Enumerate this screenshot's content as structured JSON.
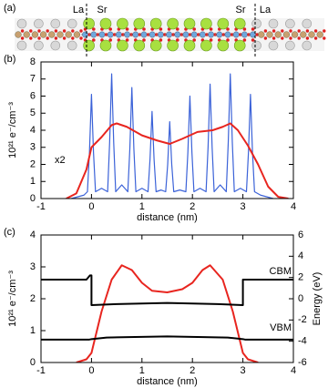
{
  "structure_panel": {
    "label": "(a)",
    "labels": [
      "La",
      "Sr",
      "Sr",
      "La"
    ]
  },
  "chart_data": [
    {
      "type": "line",
      "panel_label": "(b)",
      "xlabel": "distance (nm)",
      "ylabel": "10²¹ e⁻/cm⁻³",
      "xlim": [
        -1,
        4
      ],
      "xticks": [
        -1,
        0,
        1,
        2,
        3,
        4
      ],
      "ylim": [
        0,
        8
      ],
      "yticks": [
        0,
        1,
        2,
        3,
        4,
        5,
        6,
        7,
        8
      ],
      "annotations": [
        {
          "text": "x2",
          "color": "#e8251f"
        }
      ],
      "series": [
        {
          "color": "#3b62d8",
          "width": 1.2,
          "x": [
            -0.4,
            -0.15,
            -0.08,
            -0.04,
            0,
            0.04,
            0.08,
            0.2,
            0.32,
            0.36,
            0.4,
            0.44,
            0.48,
            0.6,
            0.72,
            0.76,
            0.8,
            0.84,
            0.88,
            1.0,
            1.12,
            1.16,
            1.2,
            1.24,
            1.28,
            1.38,
            1.47,
            1.51,
            1.55,
            1.59,
            1.63,
            1.75,
            1.87,
            1.91,
            1.95,
            1.99,
            2.03,
            2.15,
            2.27,
            2.31,
            2.35,
            2.39,
            2.43,
            2.55,
            2.67,
            2.71,
            2.75,
            2.79,
            2.83,
            2.95,
            3.07,
            3.11,
            3.15,
            3.19,
            3.23,
            3.35,
            3.6
          ],
          "values": [
            0,
            0.2,
            0.4,
            2.7,
            6.1,
            2.7,
            0.4,
            0.6,
            0.4,
            3.3,
            7.3,
            3.3,
            0.4,
            0.8,
            0.4,
            2.9,
            6.5,
            2.9,
            0.4,
            0.6,
            0.4,
            2.3,
            5.1,
            2.3,
            0.4,
            0.5,
            0.4,
            2.0,
            4.5,
            2.0,
            0.4,
            0.5,
            0.4,
            2.7,
            6.0,
            2.7,
            0.4,
            0.6,
            0.4,
            3.0,
            6.7,
            3.0,
            0.4,
            0.8,
            0.4,
            3.3,
            7.3,
            3.3,
            0.4,
            0.6,
            0.4,
            2.7,
            6.1,
            2.7,
            0.4,
            0.2,
            0
          ]
        },
        {
          "color": "#e8251f",
          "width": 2,
          "x": [
            -0.5,
            -0.3,
            -0.1,
            0,
            0.2,
            0.4,
            0.5,
            0.7,
            1.0,
            1.3,
            1.55,
            1.8,
            2.1,
            2.4,
            2.6,
            2.75,
            2.9,
            3.1,
            3.3,
            3.5,
            3.7,
            3.9
          ],
          "values": [
            0,
            0.3,
            1.7,
            3.0,
            3.6,
            4.3,
            4.4,
            4.2,
            3.7,
            3.4,
            3.2,
            3.5,
            3.9,
            4.0,
            4.2,
            4.4,
            4.0,
            3.1,
            2.0,
            0.7,
            0.1,
            0
          ]
        }
      ]
    },
    {
      "type": "line",
      "panel_label": "(c)",
      "xlabel": "distance (nm)",
      "ylabel": "10²¹ e⁻/cm⁻³",
      "y2label": "Energy (eV)",
      "xlim": [
        -1,
        4
      ],
      "xticks": [
        -1,
        0,
        1,
        2,
        3,
        4
      ],
      "ylim": [
        0,
        4
      ],
      "yticks": [
        0,
        1,
        2,
        3,
        4
      ],
      "y2lim": [
        -6,
        6
      ],
      "y2ticks": [
        -6,
        -4,
        -2,
        0,
        2,
        4,
        6
      ],
      "series": [
        {
          "color": "#e8251f",
          "width": 2,
          "x": [
            -0.3,
            -0.1,
            0,
            0.2,
            0.4,
            0.6,
            0.8,
            1.0,
            1.2,
            1.5,
            1.8,
            2.0,
            2.2,
            2.35,
            2.6,
            2.8,
            3.0,
            3.1,
            3.3
          ],
          "values": [
            0,
            0.1,
            0.3,
            1.6,
            2.6,
            3.05,
            2.9,
            2.5,
            2.25,
            2.2,
            2.3,
            2.5,
            2.9,
            3.05,
            2.6,
            1.6,
            0.3,
            0.1,
            0
          ]
        },
        {
          "name": "CBM",
          "color": "#000000",
          "width": 2,
          "axis": "y2",
          "x": [
            -1,
            -0.1,
            -0.03,
            0,
            0,
            0.5,
            1.5,
            2.5,
            3,
            3,
            4
          ],
          "values": [
            1.8,
            1.8,
            2.2,
            2.2,
            -0.6,
            -0.5,
            -0.4,
            -0.5,
            -0.6,
            1.8,
            1.8
          ]
        },
        {
          "name": "VBM",
          "color": "#000000",
          "width": 2,
          "axis": "y2",
          "x": [
            -1,
            -0.05,
            0,
            0.3,
            1.5,
            2.7,
            3,
            3.05,
            4
          ],
          "values": [
            -3.85,
            -3.85,
            -3.8,
            -3.65,
            -3.55,
            -3.65,
            -3.8,
            -3.85,
            -3.85
          ]
        }
      ]
    }
  ]
}
